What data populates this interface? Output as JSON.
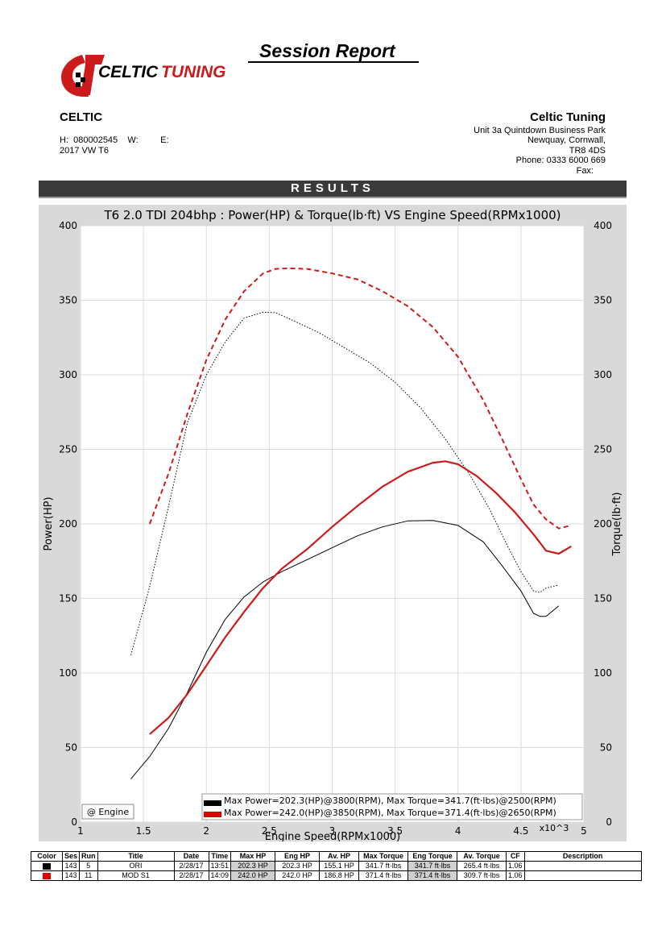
{
  "report": {
    "title": "Session Report"
  },
  "logo": {
    "text": "CELTIC",
    "text2": "TUNING",
    "colors": [
      "#cc1b1b",
      "#000000"
    ]
  },
  "customer": {
    "name": "CELTIC",
    "phone_line": "H:  080002545    W:         E:",
    "vehicle": "2017 VW T6"
  },
  "company": {
    "name": "Celtic Tuning",
    "address1": "Unit 3a Quintdown Business Park",
    "address2": "Newquay, Cornwall,",
    "postcode": "TR8 4DS",
    "phone": "Phone: 0333 6000 669",
    "fax": "Fax:"
  },
  "results_label": "RESULTS",
  "chart_data": {
    "type": "line",
    "title": "T6 2.0 TDI 204bhp : Power(HP) & Torque(lb·ft) VS Engine Speed(RPMx1000)",
    "xlabel": "Engine Speed(RPMx1000)",
    "ylabel_left": "Power(HP)",
    "ylabel_right": "Torque(lb·ft)",
    "x_multiplier_label": "x10^3",
    "xlim": [
      1,
      5
    ],
    "ylim": [
      0,
      400
    ],
    "x_ticks": [
      1,
      1.5,
      2,
      2.5,
      3,
      3.5,
      4,
      4.5,
      5
    ],
    "y_ticks": [
      0,
      50,
      100,
      150,
      200,
      250,
      300,
      350,
      400
    ],
    "engine_label": "@ Engine",
    "grid": true,
    "legend_position": "bottom-right",
    "legend": [
      {
        "color": "#000000",
        "text": "Max Power=202.3(HP)@3800(RPM), Max Torque=341.7(ft·lbs)@2500(RPM)"
      },
      {
        "color": "#e00000",
        "text": "Max Power=242.0(HP)@3850(RPM), Max Torque=371.4(ft·lbs)@2650(RPM)"
      }
    ],
    "series": [
      {
        "color": "#000000",
        "style": "solid",
        "kind": "power",
        "x": [
          1.4,
          1.55,
          1.7,
          1.85,
          2,
          2.15,
          2.3,
          2.45,
          2.6,
          2.8,
          3,
          3.2,
          3.4,
          3.6,
          3.8,
          4,
          4.2,
          4.35,
          4.5,
          4.6,
          4.65,
          4.7,
          4.8
        ],
        "y": [
          29,
          44,
          63,
          87,
          114,
          136,
          151,
          161,
          168,
          176,
          184,
          192,
          198,
          202,
          202.3,
          199,
          188,
          172,
          155,
          140,
          138,
          138,
          145
        ]
      },
      {
        "color": "#000000",
        "style": "dotted",
        "kind": "torque",
        "x": [
          1.4,
          1.55,
          1.7,
          1.85,
          2,
          2.15,
          2.3,
          2.45,
          2.55,
          2.7,
          2.9,
          3.1,
          3.3,
          3.5,
          3.7,
          3.9,
          4.1,
          4.25,
          4.4,
          4.5,
          4.6,
          4.65,
          4.7,
          4.8
        ],
        "y": [
          112,
          158,
          212,
          268,
          300,
          322,
          338,
          342,
          341.7,
          336,
          328,
          318,
          308,
          295,
          278,
          257,
          232,
          210,
          184,
          168,
          155,
          154,
          157,
          159
        ]
      },
      {
        "color": "#cc1b1b",
        "style": "solid",
        "kind": "power",
        "x": [
          1.55,
          1.7,
          1.85,
          2,
          2.15,
          2.3,
          2.45,
          2.6,
          2.8,
          3,
          3.2,
          3.4,
          3.6,
          3.8,
          3.9,
          4,
          4.15,
          4.3,
          4.45,
          4.6,
          4.7,
          4.8,
          4.9
        ],
        "y": [
          59,
          70,
          86,
          105,
          124,
          141,
          157,
          170,
          183,
          198,
          212,
          225,
          235,
          241,
          242,
          240,
          232,
          221,
          208,
          193,
          182,
          180,
          185
        ]
      },
      {
        "color": "#cc1b1b",
        "style": "dashed",
        "kind": "torque",
        "x": [
          1.55,
          1.7,
          1.85,
          2,
          2.15,
          2.3,
          2.45,
          2.55,
          2.65,
          2.8,
          3,
          3.2,
          3.4,
          3.6,
          3.8,
          4,
          4.2,
          4.35,
          4.5,
          4.6,
          4.7,
          4.8,
          4.9
        ],
        "y": [
          200,
          234,
          274,
          310,
          337,
          356,
          368,
          371,
          371.4,
          371,
          368,
          364,
          356,
          346,
          332,
          312,
          283,
          257,
          230,
          213,
          203,
          197,
          199
        ]
      }
    ]
  },
  "table": {
    "headers": [
      "Color",
      "Ses",
      "Run",
      "Title",
      "Date",
      "Time",
      "Max HP",
      "Eng HP",
      "Av. HP",
      "Max Torque",
      "Eng Torque",
      "Av. Torque",
      "CF",
      "Description"
    ],
    "rows": [
      {
        "color": "#000000",
        "cells": [
          "143",
          "5",
          "ORI",
          "2/28/17",
          "13:51",
          "202.3 HP",
          "202.3 HP",
          "155.1 HP",
          "341.7 ft·lbs",
          "341.7 ft·lbs",
          "265.4 ft·lbs",
          "1.06",
          ""
        ]
      },
      {
        "color": "#e00000",
        "cells": [
          "143",
          "11",
          "MOD S1",
          "2/28/17",
          "14:09",
          "242.0 HP",
          "242.0 HP",
          "186.8 HP",
          "371.4 ft·lbs",
          "371.4 ft·lbs",
          "309.7 ft·lbs",
          "1.06",
          ""
        ]
      }
    ]
  }
}
